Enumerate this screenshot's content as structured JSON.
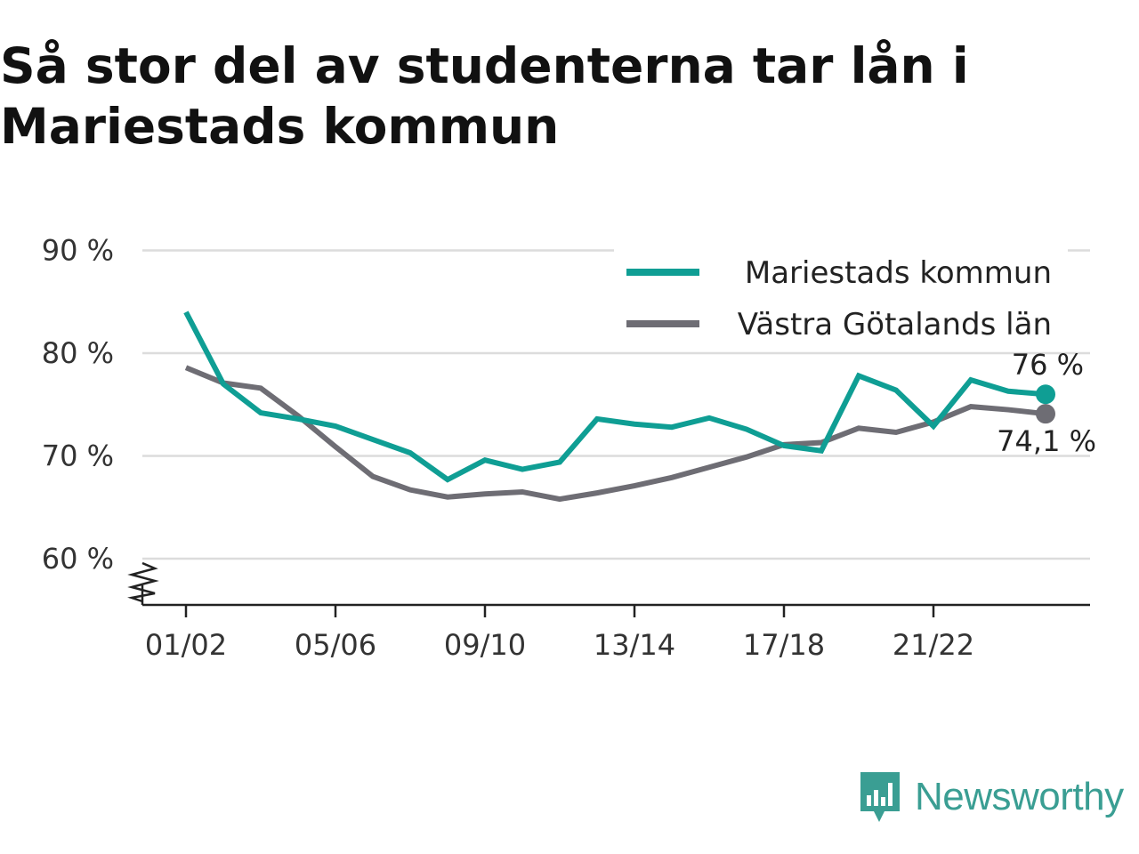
{
  "title": "Så stor del av studenterna tar lån i Mariestads kommun",
  "brand": {
    "name": "Newsworthy",
    "icon": "newsworthy-logo-icon",
    "color": "#3a9e93"
  },
  "chart_data": {
    "type": "line",
    "title": "Så stor del av studenterna tar lån i Mariestads kommun",
    "xlabel": "",
    "ylabel": "",
    "x": [
      "01/02",
      "02/03",
      "03/04",
      "04/05",
      "05/06",
      "06/07",
      "07/08",
      "08/09",
      "09/10",
      "10/11",
      "11/12",
      "12/13",
      "13/14",
      "14/15",
      "15/16",
      "16/17",
      "17/18",
      "18/19",
      "19/20",
      "20/21",
      "21/22",
      "22/23",
      "23/24",
      "24/25"
    ],
    "x_tick_labels": [
      "01/02",
      "05/06",
      "09/10",
      "13/14",
      "17/18",
      "21/22"
    ],
    "y_ticks": [
      60,
      70,
      80,
      90
    ],
    "y_tick_labels": [
      "60 %",
      "70 %",
      "80 %",
      "90 %"
    ],
    "ylim": [
      55.5,
      91
    ],
    "y_axis_break": true,
    "grid": true,
    "legend_position": "top-right",
    "series": [
      {
        "name": "Mariestads kommun",
        "color": "#0f9e94",
        "values": [
          84.0,
          77.0,
          74.2,
          73.6,
          72.9,
          71.6,
          70.3,
          67.7,
          69.6,
          68.7,
          69.4,
          73.6,
          73.1,
          72.8,
          73.7,
          72.6,
          71.0,
          70.5,
          77.8,
          76.4,
          72.9,
          77.4,
          76.3,
          76.0
        ],
        "end_label": "76 %"
      },
      {
        "name": "Västra Götalands län",
        "color": "#6e6d74",
        "values": [
          78.6,
          77.1,
          76.6,
          73.9,
          70.9,
          68.0,
          66.7,
          66.0,
          66.3,
          66.5,
          65.8,
          66.4,
          67.1,
          67.9,
          68.9,
          69.9,
          71.1,
          71.3,
          72.7,
          72.3,
          73.3,
          74.8,
          74.5,
          74.1
        ],
        "end_label": "74,1 %"
      }
    ]
  }
}
